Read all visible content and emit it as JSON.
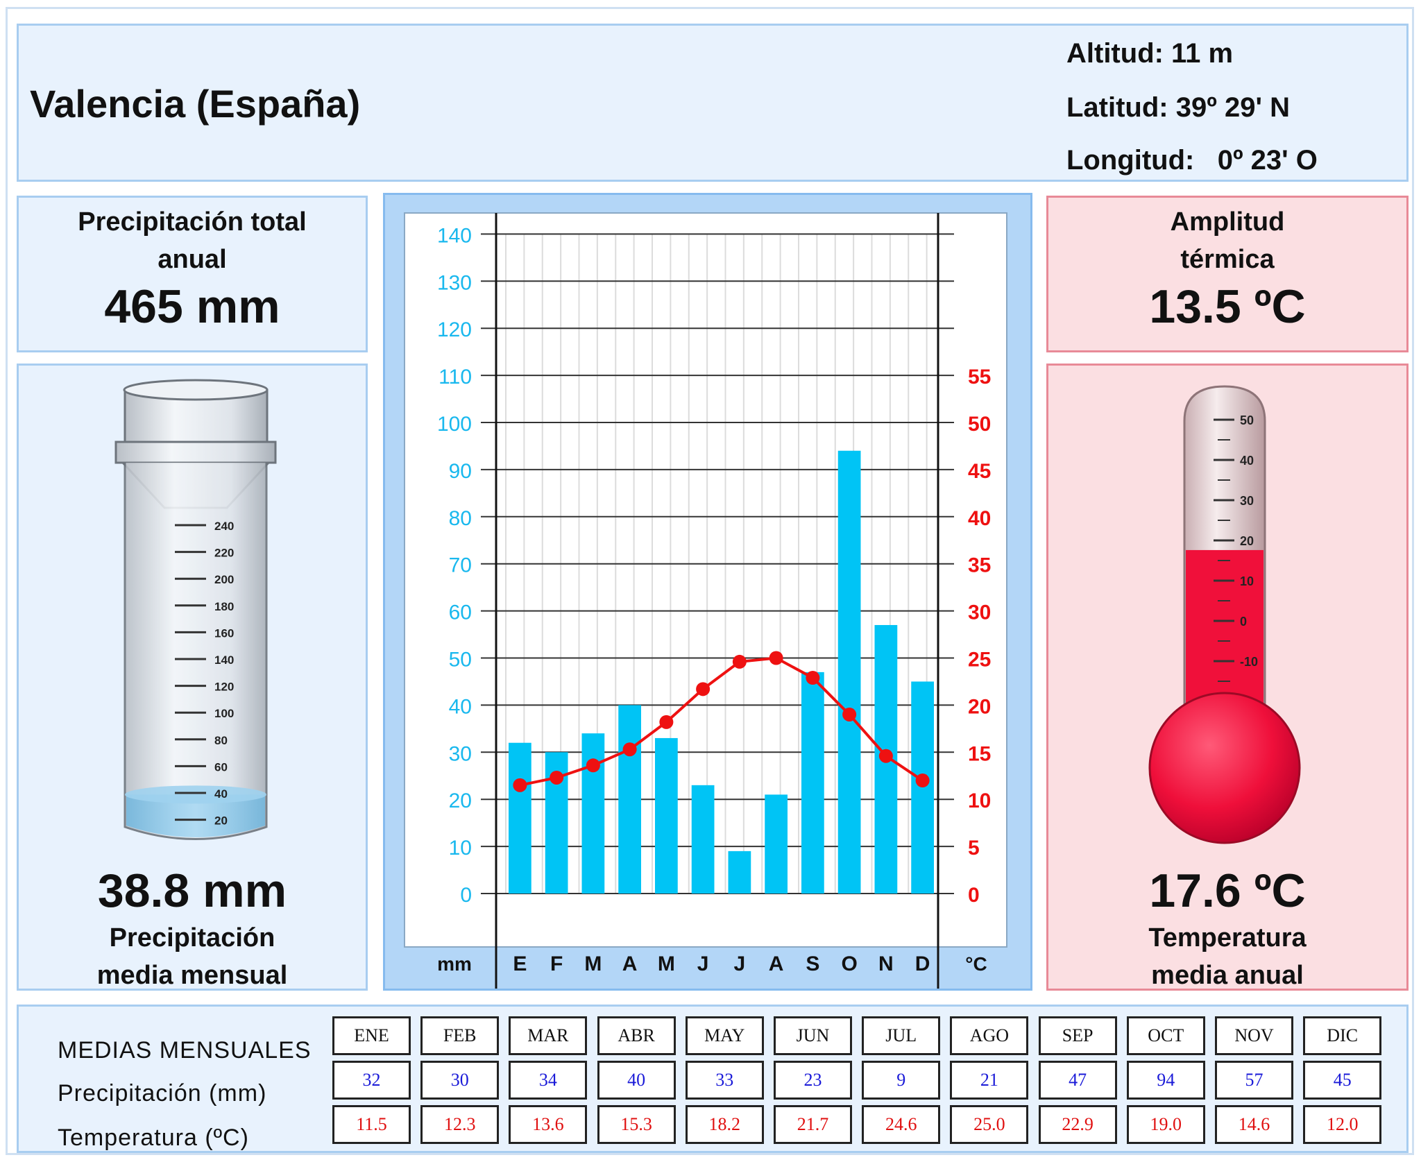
{
  "station": {
    "name": "Valencia (España)",
    "altitude": "Altitud: 11 m",
    "latitude": "Latitud: 39º 29' N",
    "longitude": "Longitud:   0º 23' O"
  },
  "precip_total": {
    "label_line1": "Precipitación total",
    "label_line2": "anual",
    "value": "465 mm"
  },
  "precip_monthly": {
    "value": "38.8 mm",
    "label_line1": "Precipitación",
    "label_line2": "media mensual",
    "fill_mm": 38.8,
    "scale_max_mm": 240
  },
  "gauge_scale": [
    "240",
    "220",
    "200",
    "180",
    "160",
    "140",
    "120",
    "100",
    "80",
    "60",
    "40",
    "20"
  ],
  "amplitude": {
    "label_line1": "Amplitud",
    "label_line2": "térmica",
    "value": "13.5 ºC"
  },
  "temp_mean": {
    "value": "17.6 ºC",
    "label_line1": "Temperatura",
    "label_line2": "media anual",
    "level_c": 17.6
  },
  "thermo_scale": [
    "50",
    "40",
    "30",
    "20",
    "10",
    "0",
    "-10"
  ],
  "chart_data": {
    "type": "bar",
    "categories": [
      "E",
      "F",
      "M",
      "A",
      "M",
      "J",
      "J",
      "A",
      "S",
      "O",
      "N",
      "D"
    ],
    "series": [
      {
        "name": "Precipitación (mm)",
        "type": "bar",
        "axis": "left",
        "color": "#00c4f5",
        "values": [
          32,
          30,
          34,
          40,
          33,
          23,
          9,
          21,
          47,
          94,
          57,
          45
        ]
      },
      {
        "name": "Temperatura (ºC)",
        "type": "line",
        "axis": "right",
        "color": "#ee1111",
        "values": [
          11.5,
          12.3,
          13.6,
          15.3,
          18.2,
          21.7,
          24.6,
          25.0,
          22.9,
          19.0,
          14.6,
          12.0
        ]
      }
    ],
    "left_axis": {
      "label": "mm",
      "ticks": [
        0,
        10,
        20,
        30,
        40,
        50,
        60,
        70,
        80,
        90,
        100,
        110,
        120,
        130,
        140
      ],
      "range": [
        0,
        140
      ],
      "color": "#19b8ee"
    },
    "right_axis": {
      "label": "°C",
      "ticks": [
        0,
        5,
        10,
        15,
        20,
        25,
        30,
        35,
        40,
        45,
        50,
        55
      ],
      "range": [
        0,
        70
      ],
      "color": "#ee1111"
    },
    "grid": true
  },
  "table": {
    "title": "MEDIAS MENSUALES",
    "precip_label": "Precipitación (mm)",
    "temp_label": "Temperatura (ºC)",
    "months": [
      "ENE",
      "FEB",
      "MAR",
      "ABR",
      "MAY",
      "JUN",
      "JUL",
      "AGO",
      "SEP",
      "OCT",
      "NOV",
      "DIC"
    ],
    "precip": [
      "32",
      "30",
      "34",
      "40",
      "33",
      "23",
      "9",
      "21",
      "47",
      "94",
      "57",
      "45"
    ],
    "temp": [
      "11.5",
      "12.3",
      "13.6",
      "15.3",
      "18.2",
      "21.7",
      "24.6",
      "25.0",
      "22.9",
      "19.0",
      "14.6",
      "12.0"
    ]
  },
  "colors": {
    "precip_text": "#1a1ad8",
    "temp_text": "#e01010",
    "bar": "#00c4f5",
    "line": "#ee1111",
    "thermo_fill": "#f0103a",
    "water": "#8cc8ea"
  }
}
